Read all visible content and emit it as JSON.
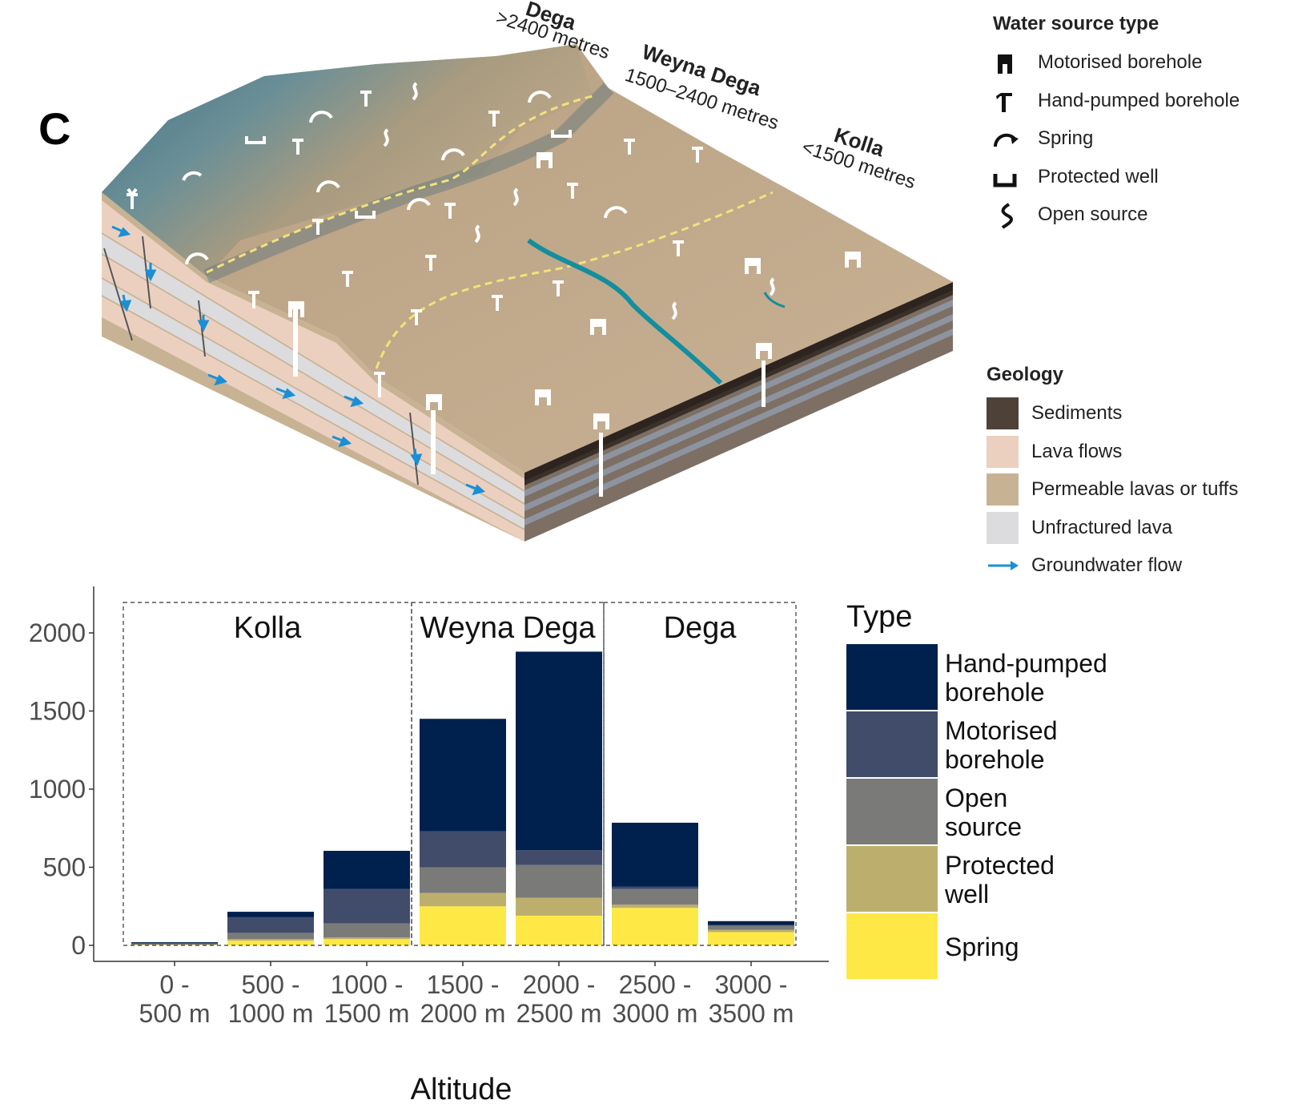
{
  "panel_letter": "C",
  "diagram": {
    "zones": [
      {
        "name": "Dega",
        "range": ">2400 metres"
      },
      {
        "name": "Weyna Dega",
        "range": "1500–2400 metres"
      },
      {
        "name": "Kolla",
        "range": "<1500 metres"
      }
    ],
    "water_source_legend": {
      "title": "Water source type",
      "items": [
        {
          "label": "Motorised borehole",
          "icon": "motorised-borehole-icon"
        },
        {
          "label": "Hand-pumped borehole",
          "icon": "hand-pumped-borehole-icon"
        },
        {
          "label": "Spring",
          "icon": "spring-icon"
        },
        {
          "label": "Protected well",
          "icon": "protected-well-icon"
        },
        {
          "label": "Open source",
          "icon": "open-source-icon"
        }
      ]
    },
    "geology_legend": {
      "title": "Geology",
      "items": [
        {
          "label": "Sediments",
          "color": "#4e4238"
        },
        {
          "label": "Lava flows",
          "color": "#ecd0bf"
        },
        {
          "label": "Permeable lavas or tuffs",
          "color": "#c7b394"
        },
        {
          "label": "Unfractured lava",
          "color": "#dcdcdf"
        },
        {
          "label": "Groundwater flow",
          "color": "#1a8fd6"
        }
      ]
    }
  },
  "chart_data": {
    "type": "bar",
    "stacked": true,
    "xlabel": "Altitude",
    "ylabel": "",
    "ylim": [
      0,
      2200
    ],
    "yticks": [
      0,
      500,
      1000,
      1500,
      2000
    ],
    "categories": [
      [
        "0 -",
        "500 m"
      ],
      [
        "500 -",
        "1000 m"
      ],
      [
        "1000 -",
        "1500 m"
      ],
      [
        "1500 -",
        "2000 m"
      ],
      [
        "2000 -",
        "2500 m"
      ],
      [
        "2500 -",
        "3000 m"
      ],
      [
        "3000 -",
        "3500 m"
      ]
    ],
    "series": [
      {
        "name": "Spring",
        "color": "#fde845",
        "values": [
          3,
          30,
          40,
          250,
          190,
          240,
          85
        ]
      },
      {
        "name": "Protected well",
        "color": "#bcaf6e",
        "values": [
          2,
          10,
          10,
          85,
          115,
          20,
          15
        ]
      },
      {
        "name": "Open source",
        "color": "#7a7b78",
        "values": [
          5,
          40,
          90,
          165,
          210,
          100,
          25
        ]
      },
      {
        "name": "Motorised borehole",
        "color": "#414c6b",
        "values": [
          5,
          100,
          220,
          230,
          95,
          15,
          5
        ]
      },
      {
        "name": "Hand-pumped borehole",
        "color": "#00204d",
        "values": [
          5,
          35,
          245,
          720,
          1270,
          410,
          25
        ]
      }
    ],
    "regions": [
      {
        "label": "Kolla",
        "from": 0,
        "to": 3
      },
      {
        "label": "Weyna Dega",
        "from": 3,
        "to": 5
      },
      {
        "label": "Dega",
        "from": 5,
        "to": 7
      }
    ],
    "legend": {
      "title": "Type",
      "position": "right",
      "items": [
        {
          "label": [
            "Hand-pumped",
            "borehole"
          ],
          "color": "#00204d"
        },
        {
          "label": [
            "Motorised",
            "borehole"
          ],
          "color": "#414c6b"
        },
        {
          "label": [
            "Open",
            "source"
          ],
          "color": "#7a7b78"
        },
        {
          "label": [
            "Protected",
            "well"
          ],
          "color": "#bcaf6e"
        },
        {
          "label": [
            "Spring"
          ],
          "color": "#fde845"
        }
      ]
    }
  }
}
